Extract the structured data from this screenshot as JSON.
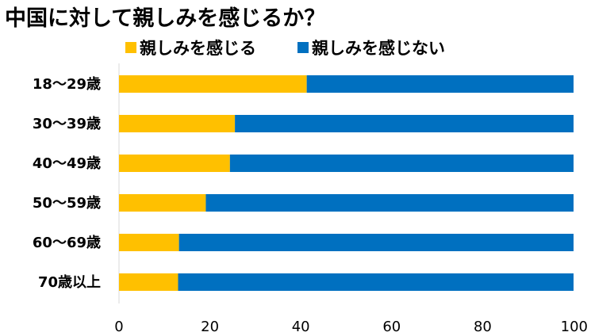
{
  "chart_data": {
    "type": "bar",
    "orientation": "horizontal",
    "stacked": true,
    "title": "中国に対して親しみを感じるか？",
    "categories": [
      "18〜29歳",
      "30〜39歳",
      "40〜49歳",
      "50〜59歳",
      "60〜69歳",
      "70歳以上"
    ],
    "series": [
      {
        "name": "親しみを感じる",
        "color": "#FFC000",
        "values": [
          41.3,
          25.5,
          24.4,
          19.1,
          13.2,
          13.0
        ]
      },
      {
        "name": "親しみを感じない",
        "color": "#0070C0",
        "values": [
          58.7,
          74.5,
          75.6,
          80.9,
          86.8,
          87.0
        ]
      }
    ],
    "xlim": [
      0,
      100
    ],
    "xticks": [
      0,
      20,
      40,
      60,
      80,
      100
    ],
    "xlabel": "",
    "ylabel": "",
    "grid": false,
    "legend_position": "top"
  }
}
